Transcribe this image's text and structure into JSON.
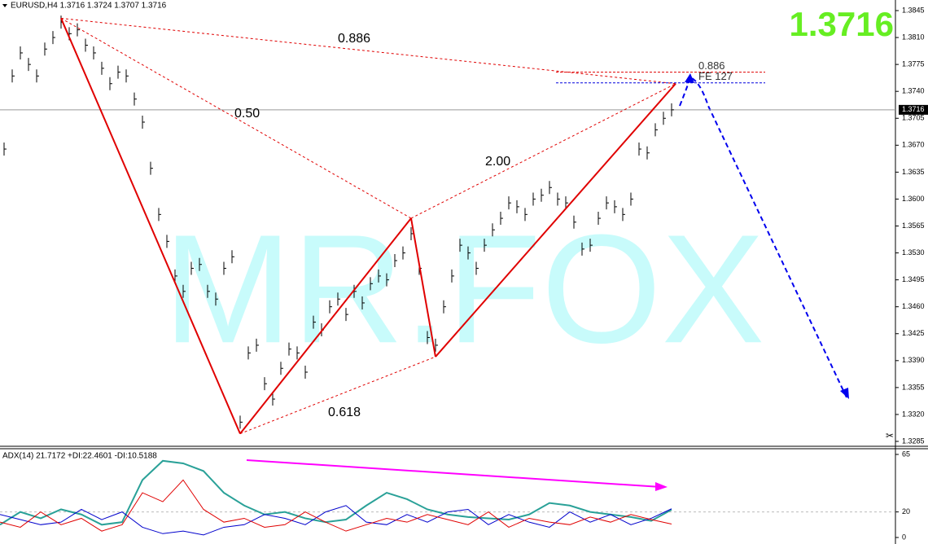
{
  "header": {
    "symbol_info": "EURUSD,H4  1.3716 1.3724 1.3707 1.3716",
    "price_big": "1.3716",
    "watermark": "MR.FOX"
  },
  "price_chart": {
    "ylim": [
      1.3285,
      1.3845
    ],
    "yticks": [
      {
        "value": 1.3845,
        "label": "1.3845"
      },
      {
        "value": 1.381,
        "label": "1.3810"
      },
      {
        "value": 1.3775,
        "label": "1.3775"
      },
      {
        "value": 1.374,
        "label": "1.3740"
      },
      {
        "value": 1.3705,
        "label": "1.3705"
      },
      {
        "value": 1.367,
        "label": "1.3670"
      },
      {
        "value": 1.3635,
        "label": "1.3635"
      },
      {
        "value": 1.36,
        "label": "1.3600"
      },
      {
        "value": 1.3565,
        "label": "1.3565"
      },
      {
        "value": 1.353,
        "label": "1.3530"
      },
      {
        "value": 1.3495,
        "label": "1.3495"
      },
      {
        "value": 1.346,
        "label": "1.3460"
      },
      {
        "value": 1.3425,
        "label": "1.3425"
      },
      {
        "value": 1.339,
        "label": "1.3390"
      },
      {
        "value": 1.3355,
        "label": "1.3355"
      },
      {
        "value": 1.332,
        "label": "1.3320"
      },
      {
        "value": 1.3285,
        "label": "1.3285"
      }
    ],
    "current_price": {
      "value": 1.3716,
      "label": "1.3716"
    },
    "closes": [
      1.3665,
      1.376,
      1.379,
      1.3775,
      1.376,
      1.3795,
      1.381,
      1.383,
      1.3815,
      1.382,
      1.38,
      1.379,
      1.377,
      1.375,
      1.3765,
      1.376,
      1.373,
      1.37,
      1.364,
      1.358,
      1.3545,
      1.35,
      1.348,
      1.351,
      1.3515,
      1.348,
      1.347,
      1.351,
      1.3525,
      1.331,
      1.34,
      1.341,
      1.336,
      1.334,
      1.338,
      1.3405,
      1.34,
      1.3375,
      1.344,
      1.343,
      1.346,
      1.347,
      1.345,
      1.348,
      1.3465,
      1.349,
      1.35,
      1.3495,
      1.352,
      1.353,
      1.3555,
      1.351,
      1.342,
      1.341,
      1.346,
      1.35,
      1.354,
      1.353,
      1.351,
      1.354,
      1.356,
      1.3575,
      1.3595,
      1.359,
      1.358,
      1.36,
      1.3605,
      1.3615,
      1.36,
      1.3595,
      1.357,
      1.3535,
      1.354,
      1.3575,
      1.3595,
      1.359,
      1.358,
      1.36,
      1.3665,
      1.366,
      1.369,
      1.3705,
      1.3716
    ],
    "pattern": [
      {
        "bar": 7,
        "price": 1.3835
      },
      {
        "bar": 29,
        "price": 1.3295
      },
      {
        "bar": 50,
        "price": 1.3575
      },
      {
        "bar": 53,
        "price": 1.3395
      },
      {
        "bar": 82.5,
        "price": 1.375
      }
    ],
    "ratios": [
      "0.886",
      "0.50",
      "2.00",
      "0.618"
    ],
    "levels": [
      {
        "label": "0.886",
        "value": 1.3765,
        "color": "#e00000"
      },
      {
        "label": "FE 127",
        "value": 1.3751,
        "color": "#0000dd"
      }
    ]
  },
  "indicator": {
    "label": "ADX(14) 21.7172 +DI:22.4601 -DI:10.5188",
    "ylim": [
      0,
      65
    ],
    "yticks": [
      65,
      20,
      0
    ],
    "series": [
      {
        "name": "ADX",
        "color": "#2aa198",
        "values": [
          10,
          20,
          15,
          22,
          18,
          10,
          12,
          45,
          60,
          58,
          52,
          35,
          25,
          18,
          20,
          15,
          12,
          14,
          25,
          35,
          30,
          22,
          18,
          16,
          15,
          14,
          18,
          27,
          25,
          20,
          18,
          16,
          13,
          21.7172
        ]
      },
      {
        "name": "+DI",
        "color": "#0000cc",
        "values": [
          18,
          14,
          10,
          12,
          22,
          14,
          20,
          8,
          3,
          5,
          2,
          8,
          10,
          18,
          15,
          10,
          20,
          25,
          12,
          10,
          18,
          12,
          20,
          22,
          10,
          18,
          12,
          8,
          20,
          12,
          18,
          10,
          15,
          22.4601
        ]
      },
      {
        "name": "-DI",
        "color": "#e00000",
        "values": [
          12,
          8,
          20,
          10,
          15,
          5,
          10,
          35,
          28,
          45,
          22,
          12,
          15,
          8,
          10,
          20,
          12,
          5,
          10,
          15,
          12,
          18,
          14,
          10,
          20,
          8,
          15,
          12,
          10,
          16,
          12,
          18,
          14,
          10.5188
        ]
      }
    ]
  }
}
